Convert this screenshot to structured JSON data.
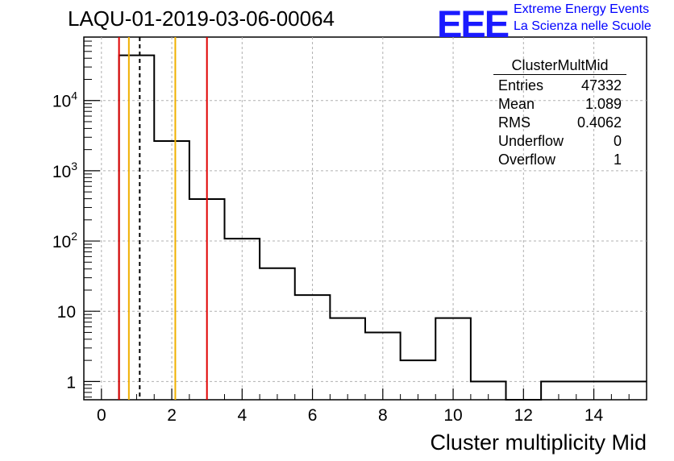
{
  "chart_data": {
    "type": "histogram",
    "title": "LAQU-01-2019-03-06-00064",
    "xlabel": "Cluster multiplicity Mid",
    "ylabel": "",
    "xlim": [
      -0.5,
      15.5
    ],
    "ylim": [
      0.55,
      80000
    ],
    "yscale": "log",
    "grid": true,
    "bins": [
      {
        "low": 0.5,
        "high": 1.5,
        "count": 44000
      },
      {
        "low": 1.5,
        "high": 2.5,
        "count": 2650
      },
      {
        "low": 2.5,
        "high": 3.5,
        "count": 395
      },
      {
        "low": 3.5,
        "high": 4.5,
        "count": 108
      },
      {
        "low": 4.5,
        "high": 5.5,
        "count": 41
      },
      {
        "low": 5.5,
        "high": 6.5,
        "count": 17
      },
      {
        "low": 6.5,
        "high": 7.5,
        "count": 8
      },
      {
        "low": 7.5,
        "high": 8.5,
        "count": 5
      },
      {
        "low": 8.5,
        "high": 9.5,
        "count": 2
      },
      {
        "low": 9.5,
        "high": 10.5,
        "count": 8
      },
      {
        "low": 10.5,
        "high": 11.5,
        "count": 1
      },
      {
        "low": 11.5,
        "high": 12.5,
        "count": 0
      },
      {
        "low": 12.5,
        "high": 15.5,
        "count": 1
      }
    ],
    "vertical_lines": [
      {
        "x": 0.5,
        "color": "#e00000",
        "style": "solid"
      },
      {
        "x": 0.78,
        "color": "#f0b000",
        "style": "solid"
      },
      {
        "x": 1.089,
        "color": "#000000",
        "style": "dashed"
      },
      {
        "x": 2.1,
        "color": "#f0b000",
        "style": "solid"
      },
      {
        "x": 3.0,
        "color": "#e00000",
        "style": "solid"
      }
    ],
    "x_ticks": [
      "0",
      "2",
      "4",
      "6",
      "8",
      "10",
      "12",
      "14"
    ],
    "y_ticks": [
      {
        "base": "1",
        "exp": ""
      },
      {
        "base": "10",
        "exp": ""
      },
      {
        "base": "10",
        "exp": "2"
      },
      {
        "base": "10",
        "exp": "3"
      },
      {
        "base": "10",
        "exp": "4"
      }
    ]
  },
  "logo": {
    "mark": "EEE",
    "line1": "Extreme Energy Events",
    "line2": "La Scienza nelle Scuole"
  },
  "stats_box": {
    "title": "ClusterMultMid",
    "rows": [
      {
        "label": "Entries",
        "value": "47332"
      },
      {
        "label": "Mean",
        "value": "1.089"
      },
      {
        "label": "RMS",
        "value": "0.4062"
      },
      {
        "label": "Underflow",
        "value": "0"
      },
      {
        "label": "Overflow",
        "value": "1"
      }
    ]
  }
}
